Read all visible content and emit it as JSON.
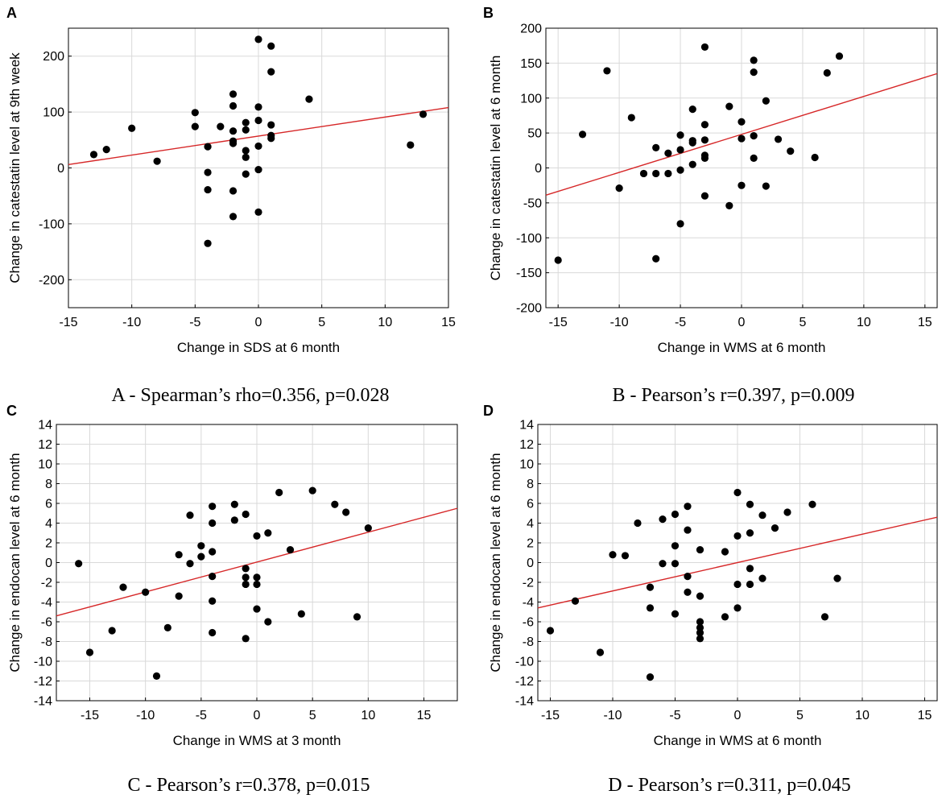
{
  "chart_data": [
    {
      "panel": "A",
      "type": "scatter",
      "xlabel": "Change in SDS at 6 month",
      "ylabel": "Change in catestatin level at 9th week",
      "caption": "A - Spearman’s rho=0.356, p=0.028",
      "xlim": [
        -15,
        15
      ],
      "ylim": [
        -250,
        250
      ],
      "xticks": [
        -15,
        -10,
        -5,
        0,
        5,
        10,
        15
      ],
      "yticks": [
        -200,
        -100,
        0,
        100,
        200
      ],
      "fit_line": {
        "x": [
          -15,
          15
        ],
        "y": [
          6,
          108
        ]
      },
      "points": [
        {
          "x": -13,
          "y": 24
        },
        {
          "x": -12,
          "y": 33
        },
        {
          "x": -10,
          "y": 71
        },
        {
          "x": -8,
          "y": 12
        },
        {
          "x": -5,
          "y": 99
        },
        {
          "x": -5,
          "y": 74
        },
        {
          "x": -4,
          "y": 38
        },
        {
          "x": -4,
          "y": -8
        },
        {
          "x": -4,
          "y": -39
        },
        {
          "x": -4,
          "y": -135
        },
        {
          "x": -3,
          "y": 74
        },
        {
          "x": -2,
          "y": 132
        },
        {
          "x": -2,
          "y": 111
        },
        {
          "x": -2,
          "y": 66
        },
        {
          "x": -2,
          "y": 48
        },
        {
          "x": -2,
          "y": 44
        },
        {
          "x": -2,
          "y": -41
        },
        {
          "x": -2,
          "y": -87
        },
        {
          "x": -1,
          "y": 81
        },
        {
          "x": -1,
          "y": 68
        },
        {
          "x": -1,
          "y": 31
        },
        {
          "x": -1,
          "y": 19
        },
        {
          "x": -1,
          "y": -11
        },
        {
          "x": 0,
          "y": 230
        },
        {
          "x": 0,
          "y": 109
        },
        {
          "x": 0,
          "y": 85
        },
        {
          "x": 0,
          "y": 39
        },
        {
          "x": 0,
          "y": -3
        },
        {
          "x": 0,
          "y": -79
        },
        {
          "x": 1,
          "y": 218
        },
        {
          "x": 1,
          "y": 172
        },
        {
          "x": 1,
          "y": 77
        },
        {
          "x": 1,
          "y": 58
        },
        {
          "x": 1,
          "y": 53
        },
        {
          "x": 4,
          "y": 123
        },
        {
          "x": 12,
          "y": 41
        },
        {
          "x": 13,
          "y": 96
        }
      ]
    },
    {
      "panel": "B",
      "type": "scatter",
      "xlabel": "Change in WMS at 6 month",
      "ylabel": "Change in catestatin level at 6 month",
      "caption": "B - Pearson’s r=0.397, p=0.009",
      "xlim": [
        -16,
        16
      ],
      "ylim": [
        -200,
        200
      ],
      "xticks": [
        -15,
        -10,
        -5,
        0,
        5,
        10,
        15
      ],
      "yticks": [
        -200,
        -150,
        -100,
        -50,
        0,
        50,
        100,
        150,
        200
      ],
      "fit_line": {
        "x": [
          -16,
          16
        ],
        "y": [
          -39,
          135
        ]
      },
      "points": [
        {
          "x": -15,
          "y": -132
        },
        {
          "x": -13,
          "y": 48
        },
        {
          "x": -11,
          "y": 139
        },
        {
          "x": -10,
          "y": -29
        },
        {
          "x": -9,
          "y": 72
        },
        {
          "x": -8,
          "y": -8
        },
        {
          "x": -7,
          "y": 29
        },
        {
          "x": -7,
          "y": -8
        },
        {
          "x": -7,
          "y": -130
        },
        {
          "x": -6,
          "y": 21
        },
        {
          "x": -6,
          "y": -8
        },
        {
          "x": -5,
          "y": 47
        },
        {
          "x": -5,
          "y": 26
        },
        {
          "x": -5,
          "y": -3
        },
        {
          "x": -5,
          "y": -80
        },
        {
          "x": -4,
          "y": 84
        },
        {
          "x": -4,
          "y": 39
        },
        {
          "x": -4,
          "y": 36
        },
        {
          "x": -4,
          "y": 5
        },
        {
          "x": -3,
          "y": 173
        },
        {
          "x": -3,
          "y": 62
        },
        {
          "x": -3,
          "y": 40
        },
        {
          "x": -3,
          "y": 18
        },
        {
          "x": -3,
          "y": 14
        },
        {
          "x": -3,
          "y": -40
        },
        {
          "x": -1,
          "y": 88
        },
        {
          "x": -1,
          "y": -54
        },
        {
          "x": 0,
          "y": 66
        },
        {
          "x": 0,
          "y": 42
        },
        {
          "x": 0,
          "y": -25
        },
        {
          "x": 1,
          "y": 154
        },
        {
          "x": 1,
          "y": 137
        },
        {
          "x": 1,
          "y": 46
        },
        {
          "x": 1,
          "y": 14
        },
        {
          "x": 2,
          "y": 96
        },
        {
          "x": 2,
          "y": -26
        },
        {
          "x": 3,
          "y": 41
        },
        {
          "x": 4,
          "y": 24
        },
        {
          "x": 6,
          "y": 15
        },
        {
          "x": 7,
          "y": 136
        },
        {
          "x": 8,
          "y": 160
        }
      ]
    },
    {
      "panel": "C",
      "type": "scatter",
      "xlabel": "Change in WMS at 3 month",
      "ylabel": "Change in endocan level at 6 month",
      "caption": "C - Pearson’s r=0.378, p=0.015",
      "xlim": [
        -18,
        18
      ],
      "ylim": [
        -14,
        14
      ],
      "xticks": [
        -15,
        -10,
        -5,
        0,
        5,
        10,
        15
      ],
      "yticks": [
        -14,
        -12,
        -10,
        -8,
        -6,
        -4,
        -2,
        0,
        2,
        4,
        6,
        8,
        10,
        12,
        14
      ],
      "fit_line": {
        "x": [
          -18,
          18
        ],
        "y": [
          -5.4,
          5.5
        ]
      },
      "points": [
        {
          "x": -16,
          "y": -0.1
        },
        {
          "x": -15,
          "y": -9.1
        },
        {
          "x": -13,
          "y": -6.9
        },
        {
          "x": -12,
          "y": -2.5
        },
        {
          "x": -10,
          "y": -3.0
        },
        {
          "x": -9,
          "y": -11.5
        },
        {
          "x": -8,
          "y": -6.6
        },
        {
          "x": -7,
          "y": 0.8
        },
        {
          "x": -7,
          "y": -3.4
        },
        {
          "x": -6,
          "y": 4.8
        },
        {
          "x": -6,
          "y": -0.1
        },
        {
          "x": -5,
          "y": 1.7
        },
        {
          "x": -5,
          "y": 0.6
        },
        {
          "x": -4,
          "y": 5.7
        },
        {
          "x": -4,
          "y": 4.0
        },
        {
          "x": -4,
          "y": 1.1
        },
        {
          "x": -4,
          "y": -1.4
        },
        {
          "x": -4,
          "y": -3.9
        },
        {
          "x": -4,
          "y": -7.1
        },
        {
          "x": -2,
          "y": 5.9
        },
        {
          "x": -2,
          "y": 4.3
        },
        {
          "x": -1,
          "y": 4.9
        },
        {
          "x": -1,
          "y": -0.6
        },
        {
          "x": -1,
          "y": -1.5
        },
        {
          "x": -1,
          "y": -2.2
        },
        {
          "x": -1,
          "y": -7.7
        },
        {
          "x": 0,
          "y": 2.7
        },
        {
          "x": 0,
          "y": -1.5
        },
        {
          "x": 0,
          "y": -2.2
        },
        {
          "x": 0,
          "y": -4.7
        },
        {
          "x": 1,
          "y": 3.0
        },
        {
          "x": 1,
          "y": -6.0
        },
        {
          "x": 2,
          "y": 7.1
        },
        {
          "x": 3,
          "y": 1.3
        },
        {
          "x": 4,
          "y": -5.2
        },
        {
          "x": 5,
          "y": 7.3
        },
        {
          "x": 7,
          "y": 5.9
        },
        {
          "x": 8,
          "y": 5.1
        },
        {
          "x": 9,
          "y": -5.5
        },
        {
          "x": 10,
          "y": 3.5
        }
      ]
    },
    {
      "panel": "D",
      "type": "scatter",
      "xlabel": "Change in WMS at 6 month",
      "ylabel": "Change in endocan level at 6 month",
      "caption": "D - Pearson’s r=0.311, p=0.045",
      "xlim": [
        -16,
        16
      ],
      "ylim": [
        -14,
        14
      ],
      "xticks": [
        -15,
        -10,
        -5,
        0,
        5,
        10,
        15
      ],
      "yticks": [
        -14,
        -12,
        -10,
        -8,
        -6,
        -4,
        -2,
        0,
        2,
        4,
        6,
        8,
        10,
        12,
        14
      ],
      "fit_line": {
        "x": [
          -16,
          16
        ],
        "y": [
          -4.6,
          4.6
        ]
      },
      "points": [
        {
          "x": -15,
          "y": -6.9
        },
        {
          "x": -13,
          "y": -3.9
        },
        {
          "x": -11,
          "y": -9.1
        },
        {
          "x": -10,
          "y": 0.8
        },
        {
          "x": -9,
          "y": 0.7
        },
        {
          "x": -8,
          "y": 4.0
        },
        {
          "x": -7,
          "y": -2.5
        },
        {
          "x": -7,
          "y": -4.6
        },
        {
          "x": -7,
          "y": -11.6
        },
        {
          "x": -6,
          "y": 4.4
        },
        {
          "x": -6,
          "y": -0.1
        },
        {
          "x": -5,
          "y": 4.9
        },
        {
          "x": -5,
          "y": 1.7
        },
        {
          "x": -5,
          "y": -0.1
        },
        {
          "x": -5,
          "y": -5.2
        },
        {
          "x": -4,
          "y": 5.7
        },
        {
          "x": -4,
          "y": 3.3
        },
        {
          "x": -4,
          "y": -1.4
        },
        {
          "x": -4,
          "y": -3.0
        },
        {
          "x": -3,
          "y": 1.3
        },
        {
          "x": -3,
          "y": -3.4
        },
        {
          "x": -3,
          "y": -6.0
        },
        {
          "x": -3,
          "y": -6.6
        },
        {
          "x": -3,
          "y": -7.1
        },
        {
          "x": -3,
          "y": -7.7
        },
        {
          "x": -1,
          "y": 1.1
        },
        {
          "x": -1,
          "y": -5.5
        },
        {
          "x": 0,
          "y": 7.1
        },
        {
          "x": 0,
          "y": 2.7
        },
        {
          "x": 0,
          "y": -2.2
        },
        {
          "x": 0,
          "y": -4.6
        },
        {
          "x": 1,
          "y": 5.9
        },
        {
          "x": 1,
          "y": 3.0
        },
        {
          "x": 1,
          "y": -0.6
        },
        {
          "x": 1,
          "y": -2.2
        },
        {
          "x": 2,
          "y": 4.8
        },
        {
          "x": 2,
          "y": -1.6
        },
        {
          "x": 3,
          "y": 3.5
        },
        {
          "x": 4,
          "y": 5.1
        },
        {
          "x": 6,
          "y": 5.9
        },
        {
          "x": 7,
          "y": -5.5
        },
        {
          "x": 8,
          "y": -1.6
        }
      ]
    }
  ]
}
